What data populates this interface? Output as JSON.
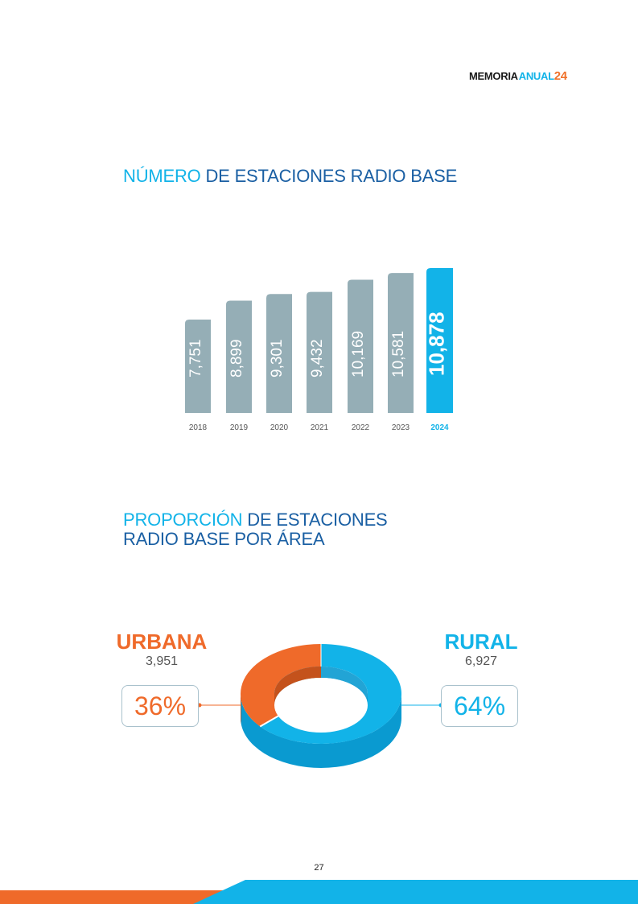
{
  "header": {
    "brand_part1": "MEMORIA",
    "brand_part2": "ANUAL",
    "brand_part3": "24"
  },
  "section1": {
    "title_highlight": "NÚMERO",
    "title_rest": " DE ESTACIONES RADIO BASE"
  },
  "chart_data": [
    {
      "type": "bar",
      "categories": [
        "2018",
        "2019",
        "2020",
        "2021",
        "2022",
        "2023",
        "2024"
      ],
      "values": [
        7751,
        8899,
        9301,
        9432,
        10169,
        10581,
        10878
      ],
      "value_labels": [
        "7,751",
        "8,899",
        "9,301",
        "9,432",
        "10,169",
        "10,581",
        "10,878"
      ],
      "highlight_category": "2024",
      "colors": {
        "default": "#95aeb6",
        "highlight": "#12b3e8"
      }
    },
    {
      "type": "pie",
      "categories": [
        "URBANA",
        "RURAL"
      ],
      "values": [
        3951,
        6927
      ],
      "value_labels": [
        "3,951",
        "6,927"
      ],
      "percent_labels": [
        "36%",
        "64%"
      ],
      "colors": [
        "#ef6a2a",
        "#12b3e8"
      ]
    }
  ],
  "section2": {
    "title_highlight": "PROPORCIÓN",
    "title_rest_line1": " DE ESTACIONES",
    "title_line2": "RADIO BASE POR ÁREA"
  },
  "page_number": "27",
  "colors": {
    "orange": "#ef6a2a",
    "cyan": "#12b3e8",
    "navy": "#1a5fa3",
    "gray_bar": "#95aeb6"
  }
}
